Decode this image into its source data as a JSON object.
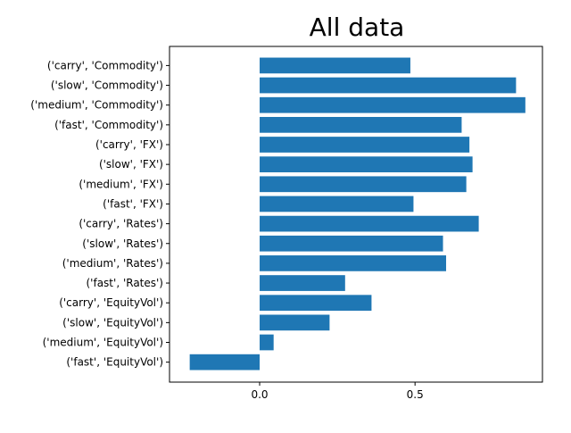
{
  "chart_data": {
    "type": "bar",
    "orientation": "horizontal",
    "title": "All data",
    "xlabel": "",
    "ylabel": "",
    "xlim": [
      -0.29,
      0.91
    ],
    "xticks": [
      0.0,
      0.5
    ],
    "xtick_labels": [
      "0.0",
      "0.5"
    ],
    "grid": false,
    "legend": "none",
    "bar_color": "#1f77b4",
    "categories": [
      "('carry', 'Commodity')",
      "('slow', 'Commodity')",
      "('medium', 'Commodity')",
      "('fast', 'Commodity')",
      "('carry', 'FX')",
      "('slow', 'FX')",
      "('medium', 'FX')",
      "('fast', 'FX')",
      "('carry', 'Rates')",
      "('slow', 'Rates')",
      "('medium', 'Rates')",
      "('fast', 'Rates')",
      "('carry', 'EquityVol')",
      "('slow', 'EquityVol')",
      "('medium', 'EquityVol')",
      "('fast', 'EquityVol')"
    ],
    "values": [
      0.485,
      0.825,
      0.855,
      0.65,
      0.675,
      0.685,
      0.665,
      0.495,
      0.705,
      0.59,
      0.6,
      0.275,
      0.36,
      0.225,
      0.045,
      -0.225
    ]
  }
}
